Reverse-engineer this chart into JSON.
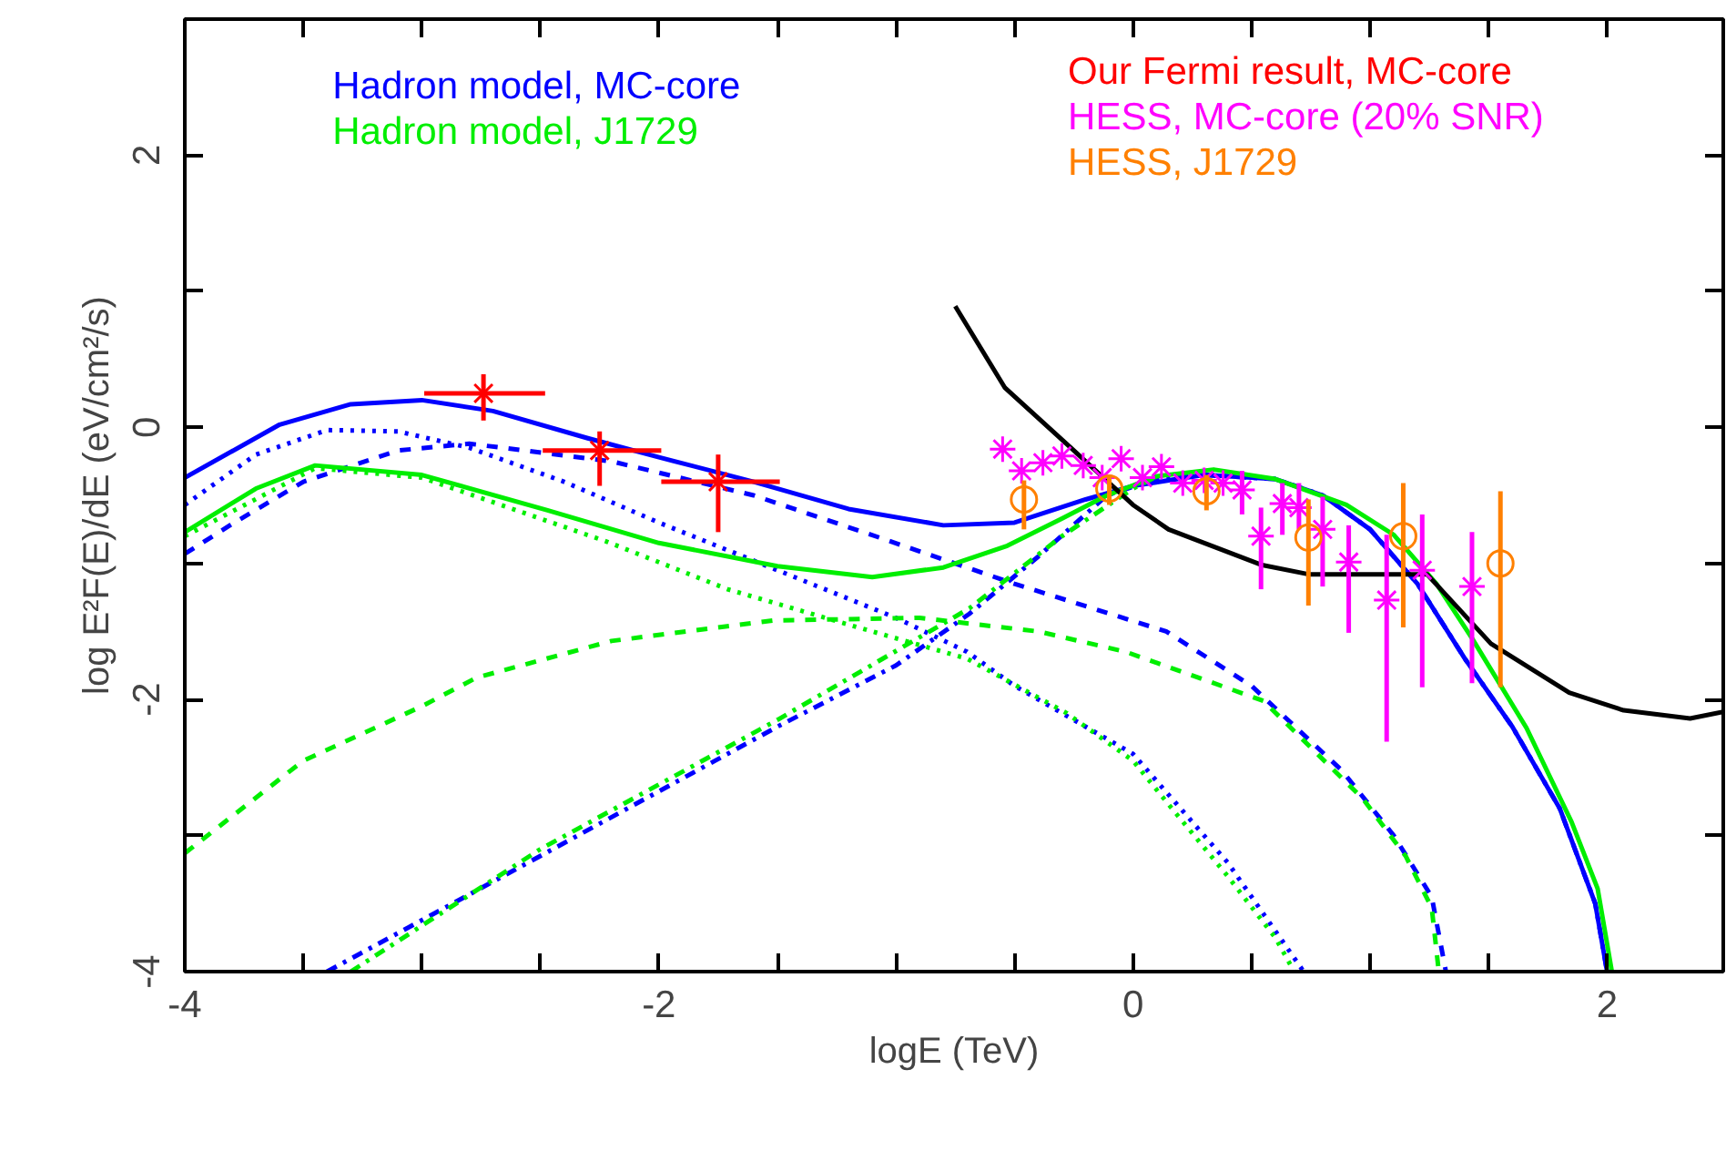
{
  "chart_data": {
    "type": "line",
    "xlabel": "logE (TeV)",
    "ylabel": "log E²F(E)/dE (eV/cm²/s)",
    "xlim": [
      -4,
      2.49
    ],
    "ylim": [
      -4,
      3
    ],
    "xticks": [
      -4,
      {
        "value": -3.5,
        "label": null
      },
      {
        "value": -3,
        "label": null
      },
      {
        "value": -2.5,
        "label": null
      },
      -2,
      {
        "value": -1.5,
        "label": null
      },
      {
        "value": -1,
        "label": null
      },
      {
        "value": -0.5,
        "label": null
      },
      0,
      {
        "value": 0.5,
        "label": null
      },
      {
        "value": 1,
        "label": null
      },
      {
        "value": 1.5,
        "label": null
      },
      2
    ],
    "yticks": [
      -4,
      {
        "value": -3,
        "label": null
      },
      -2,
      {
        "value": -1,
        "label": null
      },
      0,
      {
        "value": 1,
        "label": null
      },
      2
    ],
    "grid": false,
    "legend": "top",
    "series": [
      {
        "name": "Hadron model, MC-core",
        "color": "#0000ff",
        "line_style": "solid",
        "marker": "none",
        "x": [
          -4,
          -3.6,
          -3.3,
          -3.0,
          -2.7,
          -2.3,
          -2.0,
          -1.6,
          -1.2,
          -0.8,
          -0.5,
          -0.2,
          0,
          0.3,
          0.6,
          0.8,
          1.0,
          1.2,
          1.4,
          1.6,
          1.8,
          1.95,
          2.0
        ],
        "values": [
          -0.37,
          0.02,
          0.17,
          0.2,
          0.12,
          -0.08,
          -0.22,
          -0.4,
          -0.6,
          -0.72,
          -0.7,
          -0.53,
          -0.43,
          -0.35,
          -0.38,
          -0.5,
          -0.75,
          -1.15,
          -1.7,
          -2.2,
          -2.8,
          -3.5,
          -4
        ]
      },
      {
        "color": "#0000ff",
        "line_style": "dotted",
        "marker": "none",
        "x": [
          -4,
          -3.7,
          -3.4,
          -3.1,
          -2.8,
          -2.4,
          -2.0,
          -1.5,
          -1.0,
          -0.7,
          -0.5,
          0,
          0.2,
          0.4,
          0.6,
          0.72
        ],
        "values": [
          -0.57,
          -0.2,
          -0.02,
          -0.03,
          -0.15,
          -0.4,
          -0.7,
          -1.05,
          -1.4,
          -1.65,
          -1.9,
          -2.4,
          -2.8,
          -3.2,
          -3.7,
          -4
        ]
      },
      {
        "color": "#0000ff",
        "line_style": "dashed",
        "marker": "none",
        "x": [
          -4,
          -3.8,
          -3.5,
          -3.1,
          -2.8,
          -2.2,
          -1.6,
          -1.07,
          -0.5,
          0.14,
          0.5,
          0.88,
          1.1,
          1.26,
          1.32
        ],
        "values": [
          -0.93,
          -0.71,
          -0.4,
          -0.17,
          -0.12,
          -0.25,
          -0.5,
          -0.81,
          -1.15,
          -1.5,
          -1.9,
          -2.52,
          -3.0,
          -3.45,
          -4
        ]
      },
      {
        "color": "#0000ff",
        "line_style": "dashdot",
        "marker": "none",
        "x": [
          -3.4,
          -2.5,
          -1.5,
          -1.0,
          -0.69,
          -0.4,
          -0.11,
          0.1,
          0.3,
          0.6,
          0.8,
          1.0,
          1.2,
          1.4,
          1.6,
          1.8,
          1.95,
          2.0
        ],
        "values": [
          -4,
          -3.15,
          -2.2,
          -1.75,
          -1.37,
          -0.95,
          -0.5,
          -0.38,
          -0.35,
          -0.38,
          -0.5,
          -0.75,
          -1.15,
          -1.7,
          -2.2,
          -2.8,
          -3.5,
          -4
        ]
      },
      {
        "name": "Hadron model, J1729",
        "color": "#00ee00",
        "line_style": "solid",
        "marker": "none",
        "x": [
          -4,
          -3.7,
          -3.45,
          -3.0,
          -2.47,
          -2.0,
          -1.5,
          -1.1,
          -0.8,
          -0.53,
          -0.3,
          -0.11,
          0.1,
          0.34,
          0.6,
          0.9,
          1.1,
          1.28,
          1.43,
          1.66,
          1.85,
          1.96,
          2.02
        ],
        "values": [
          -0.77,
          -0.45,
          -0.28,
          -0.35,
          -0.61,
          -0.85,
          -1.02,
          -1.1,
          -1.03,
          -0.87,
          -0.67,
          -0.5,
          -0.36,
          -0.31,
          -0.38,
          -0.57,
          -0.79,
          -1.15,
          -1.55,
          -2.21,
          -2.9,
          -3.39,
          -4
        ]
      },
      {
        "color": "#00ee00",
        "line_style": "dotted",
        "marker": "none",
        "x": [
          -4,
          -3.45,
          -3.0,
          -2.7,
          -2.22,
          -1.71,
          -1.2,
          -0.7,
          -0.28,
          0,
          0.14,
          0.4,
          0.6,
          0.68
        ],
        "values": [
          -0.8,
          -0.3,
          -0.37,
          -0.55,
          -0.84,
          -1.19,
          -1.45,
          -1.7,
          -2.1,
          -2.45,
          -2.75,
          -3.3,
          -3.75,
          -4
        ]
      },
      {
        "color": "#00ee00",
        "line_style": "dashed",
        "marker": "none",
        "x": [
          -4,
          -3.5,
          -3.0,
          -2.77,
          -2.2,
          -1.52,
          -0.9,
          -0.4,
          -0.03,
          0.55,
          0.97,
          1.15,
          1.26,
          1.29
        ],
        "values": [
          -3.13,
          -2.45,
          -2.05,
          -1.84,
          -1.57,
          -1.42,
          -1.4,
          -1.5,
          -1.65,
          -2.01,
          -2.73,
          -3.15,
          -3.53,
          -4
        ]
      },
      {
        "color": "#00ee00",
        "line_style": "dashdot",
        "marker": "none",
        "x": [
          -3.3,
          -2.5,
          -1.5,
          -0.69,
          -0.3,
          0,
          0.1
        ],
        "values": [
          -4,
          -3.1,
          -2.15,
          -1.33,
          -0.8,
          -0.45,
          -0.36
        ]
      },
      {
        "color": "#000000",
        "line_style": "solid",
        "marker": "none",
        "x": [
          -0.75,
          -0.54,
          -0.25,
          0,
          0.15,
          0.54,
          0.74,
          1.24,
          1.51,
          1.84,
          2.07,
          2.35,
          2.49
        ],
        "values": [
          0.89,
          0.29,
          -0.17,
          -0.57,
          -0.75,
          -1.01,
          -1.08,
          -1.08,
          -1.59,
          -1.95,
          -2.08,
          -2.14,
          -2.09
        ]
      },
      {
        "name": "Our Fermi result, MC-core",
        "type": "scatter",
        "color": "#ff0000",
        "marker": "cross",
        "x": [
          -2.74,
          -2.25,
          -1.75
        ],
        "values": [
          0.25,
          -0.17,
          -0.4
        ],
        "errors": [
          [
            0.05,
            0.39
          ],
          [
            -0.43,
            -0.03
          ],
          [
            -0.77,
            -0.2
          ]
        ],
        "xerrors": [
          [
            -2.99,
            -2.48
          ],
          [
            -2.49,
            -1.99
          ],
          [
            -1.99,
            -1.49
          ]
        ]
      },
      {
        "name": "HESS, MC-core (20% SNR)",
        "type": "scatter",
        "color": "#ff00ff",
        "marker": "cross",
        "x": [
          -0.55,
          -0.47,
          -0.38,
          -0.3,
          -0.21,
          -0.13,
          -0.05,
          0.04,
          0.12,
          0.21,
          0.3,
          0.38,
          0.46,
          0.54,
          0.63,
          0.7,
          0.8,
          0.91,
          1.07,
          1.22,
          1.43
        ],
        "values": [
          -0.16,
          -0.32,
          -0.26,
          -0.21,
          -0.28,
          -0.37,
          -0.23,
          -0.37,
          -0.29,
          -0.41,
          -0.39,
          -0.41,
          -0.46,
          -0.8,
          -0.56,
          -0.59,
          -0.75,
          -0.99,
          -1.27,
          -1.05,
          -1.17
        ],
        "errors": [
          null,
          null,
          null,
          null,
          null,
          null,
          null,
          null,
          null,
          null,
          null,
          null,
          [
            -0.64,
            -0.32
          ],
          [
            -1.19,
            -0.59
          ],
          [
            -0.79,
            -0.41
          ],
          [
            -0.75,
            -0.41
          ],
          [
            -1.17,
            -0.51
          ],
          [
            -1.51,
            -0.72
          ],
          [
            -2.31,
            -0.79
          ],
          [
            -1.91,
            -0.64
          ],
          [
            -1.88,
            -0.77
          ]
        ]
      },
      {
        "name": "HESS, J1729",
        "type": "scatter",
        "color": "#ff8000",
        "marker": "circle",
        "x": [
          -0.46,
          -0.1,
          0.31,
          0.74,
          1.14,
          1.55
        ],
        "values": [
          -0.53,
          -0.45,
          -0.47,
          -0.81,
          -0.8,
          -1.0
        ],
        "errors": [
          [
            -0.75,
            -0.39
          ],
          [
            -0.57,
            -0.35
          ],
          [
            -0.61,
            -0.35
          ],
          [
            -1.31,
            -0.53
          ],
          [
            -1.47,
            -0.41
          ],
          [
            -1.91,
            -0.47
          ]
        ]
      }
    ]
  }
}
